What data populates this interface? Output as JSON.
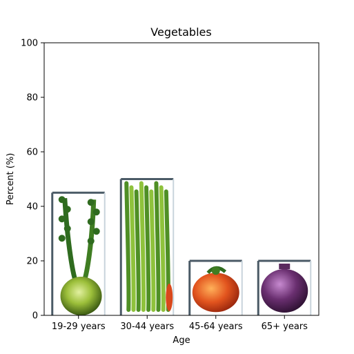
{
  "chart_data": {
    "type": "bar",
    "title": "Vegetables",
    "xlabel": "Age",
    "ylabel": "Percent (%)",
    "categories": [
      "19-29 years",
      "30-44 years",
      "45-64 years",
      "65+ years"
    ],
    "values": [
      45,
      50,
      20,
      20
    ],
    "ylim": [
      0,
      100
    ],
    "yticks": [
      0,
      20,
      40,
      60,
      80,
      100
    ],
    "grid": false,
    "bar_fill": "pictograph",
    "bar_icons": [
      "celery-root-icon",
      "celery-stalks-icon",
      "red-pepper-icon",
      "eggplant-icon"
    ],
    "colors": {
      "frame": "#4a5a66",
      "dark_green": "#2f6b1f",
      "light_green": "#9ccc4a",
      "red": "#d9481c",
      "purple": "#5a2a5e"
    }
  }
}
